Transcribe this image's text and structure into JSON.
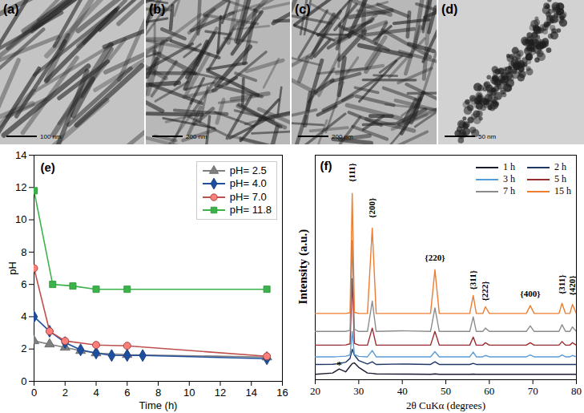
{
  "images": [
    {
      "label": "(a)",
      "scale_bar": "100 nm"
    },
    {
      "label": "(b)",
      "scale_bar": "200 nm"
    },
    {
      "label": "(c)",
      "scale_bar": "200 nm"
    },
    {
      "label": "(d)",
      "scale_bar": "50 nm"
    }
  ],
  "chart_data": [
    {
      "type": "line",
      "title": "(e)",
      "x_label": "Time (h)",
      "y_label": "pH",
      "xlim": [
        0,
        16
      ],
      "xticks": [
        0,
        2,
        4,
        6,
        8,
        10,
        12,
        14,
        16
      ],
      "ylim": [
        0,
        14
      ],
      "yticks": [
        0,
        2,
        4,
        6,
        8,
        10,
        12,
        14
      ],
      "grid": false,
      "legend": "upper right",
      "series": [
        {
          "name": "pH= 2.5",
          "color": "#7f7f7f",
          "marker": "triangle",
          "x": [
            0,
            1,
            2,
            3,
            4,
            6,
            15
          ],
          "values": [
            2.5,
            2.3,
            2.1,
            1.9,
            1.75,
            1.65,
            1.5
          ]
        },
        {
          "name": "pH= 4.0",
          "color": "#1f4e9c",
          "marker": "diamond",
          "x": [
            0,
            1,
            2,
            3,
            4,
            5,
            6,
            7,
            15
          ],
          "values": [
            4.0,
            3.1,
            2.4,
            1.95,
            1.75,
            1.6,
            1.6,
            1.6,
            1.4
          ]
        },
        {
          "name": "pH= 7.0",
          "color": "#c0504d",
          "marker": "circle",
          "x": [
            0,
            1,
            2,
            4,
            6,
            15
          ],
          "values": [
            7.0,
            3.1,
            2.5,
            2.25,
            2.2,
            1.55
          ]
        },
        {
          "name": "pH= 11.8",
          "color": "#3cb34a",
          "marker": "square",
          "x": [
            0,
            1.2,
            2.5,
            4,
            6,
            15
          ],
          "values": [
            11.8,
            6.0,
            5.9,
            5.7,
            5.7,
            5.7
          ]
        }
      ]
    },
    {
      "type": "line",
      "title": "(f)",
      "x_label": "2θ CuKα (degrees)",
      "y_label": "Intensity (a.u.)",
      "xlim": [
        20,
        80
      ],
      "xticks": [
        20,
        30,
        40,
        50,
        60,
        70,
        80
      ],
      "ylim": [
        0,
        100
      ],
      "tick_labels": "x",
      "grid": false,
      "legend": "upper right",
      "x": [
        20,
        24,
        25.5,
        27,
        28,
        28.5,
        29,
        30,
        32,
        33.1,
        34,
        40,
        46.5,
        47.5,
        48.5,
        55.5,
        56.3,
        57,
        58.5,
        59.1,
        60,
        68.5,
        69.4,
        70.3,
        76,
        76.7,
        77.5,
        78.5,
        79.1,
        80
      ],
      "series": [
        {
          "name": "1 h",
          "color": "#1b1b2f",
          "values": [
            2.4,
            3,
            4.8,
            3.5,
            6,
            7.2,
            7.5,
            5.5,
            3,
            2.8,
            2.6,
            2.5,
            2.4,
            2.6,
            2.4,
            2.4,
            2.5,
            2.4,
            2.4,
            2.4,
            2.4,
            2.4,
            2.4,
            2.4,
            2.4,
            2.4,
            2.4,
            2.4,
            2.4,
            2.4
          ]
        },
        {
          "name": "2 h",
          "color": "#1f3864",
          "values": [
            6.8,
            6.9,
            7.2,
            7.8,
            9.5,
            13.6,
            11,
            8.5,
            7,
            8,
            6.8,
            7,
            6.8,
            8,
            6.8,
            6.8,
            7.3,
            6.8,
            6.8,
            6.8,
            6.8,
            6.8,
            6.8,
            6.8,
            6.8,
            6.8,
            6.8,
            6.8,
            6.8,
            6.8
          ]
        },
        {
          "name": "3 h",
          "color": "#5b9bd5",
          "values": [
            10.2,
            10.2,
            10.3,
            10.5,
            11,
            21.5,
            11.2,
            10.4,
            10.2,
            13,
            10.2,
            10.2,
            10.2,
            12.5,
            10.2,
            10.2,
            12.3,
            10.2,
            10.2,
            10.8,
            10.2,
            10.2,
            11,
            10.2,
            10.2,
            11,
            10.2,
            10.2,
            10.8,
            10.2
          ]
        },
        {
          "name": "5 h",
          "color": "#9b2d30",
          "values": [
            15.4,
            15.4,
            15.4,
            15.5,
            16,
            45,
            16.2,
            15.4,
            15.4,
            23,
            15.4,
            15.4,
            15.4,
            21.5,
            15.4,
            15.4,
            19,
            15.4,
            15.4,
            16.5,
            15.4,
            15.4,
            16.5,
            15.4,
            15.4,
            17,
            15.4,
            15.4,
            16.5,
            15.4
          ]
        },
        {
          "name": "7 h",
          "color": "#8c8c8c",
          "values": [
            21.5,
            21.5,
            21.5,
            21.5,
            22,
            62,
            22.5,
            21.5,
            21.5,
            35,
            21.5,
            21.8,
            21.5,
            32,
            21.5,
            21.5,
            28,
            21.5,
            21.5,
            23,
            21.5,
            21.5,
            24,
            21.5,
            21.5,
            24.5,
            21.5,
            21.5,
            23.5,
            21.5
          ]
        },
        {
          "name": "15 h",
          "color": "#ed7d31",
          "values": [
            29.5,
            29.5,
            29.5,
            29.5,
            29.8,
            83,
            30,
            29.5,
            29.5,
            67.5,
            29.5,
            29.5,
            29.5,
            49,
            29.5,
            29.5,
            37.5,
            29.5,
            29.5,
            32.5,
            29.5,
            29.5,
            33,
            29.5,
            29.5,
            34,
            29.5,
            29.5,
            33.5,
            29.5
          ]
        }
      ],
      "annotations": [
        {
          "text": "{111}",
          "x": 28.5,
          "y": 88
        },
        {
          "text": "{200}",
          "x": 33.1,
          "y": 72
        },
        {
          "text": "{220}",
          "x": 47.5,
          "y": 53
        },
        {
          "text": "{311}",
          "x": 56.3,
          "y": 40
        },
        {
          "text": "{222}",
          "x": 59.1,
          "y": 35
        },
        {
          "text": "{400}",
          "x": 69.4,
          "y": 37
        },
        {
          "text": "{311}",
          "x": 76.7,
          "y": 38
        },
        {
          "text": "{420}",
          "x": 79.1,
          "y": 37.5
        },
        {
          "text": "*",
          "x": 25.5,
          "y": 5.2
        }
      ]
    }
  ]
}
